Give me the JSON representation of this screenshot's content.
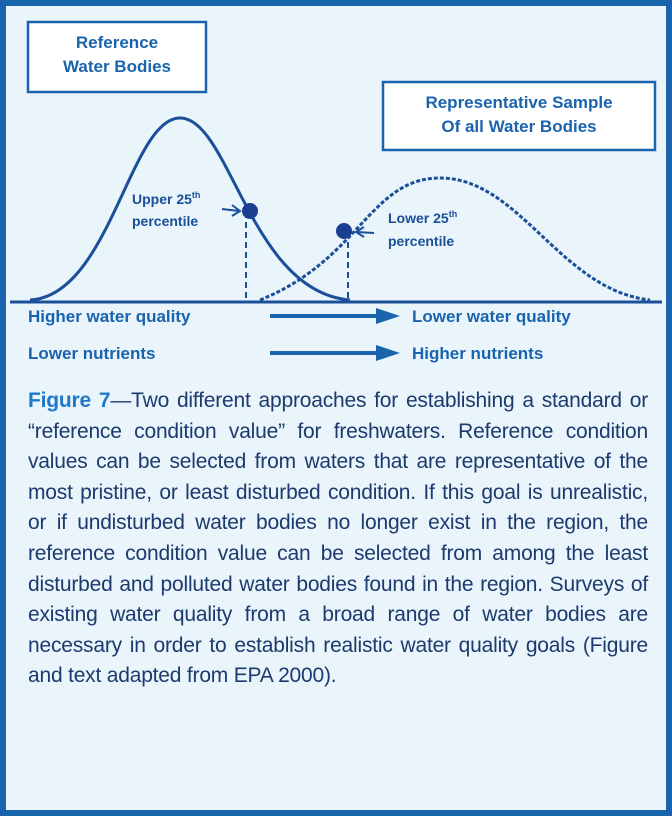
{
  "reference_box": {
    "lines": [
      "Reference",
      "Water Bodies"
    ]
  },
  "sample_box": {
    "lines": [
      "Representative Sample",
      "Of all Water Bodies"
    ]
  },
  "upper_label": {
    "text": "Upper 25",
    "superscript": "th",
    "line2": "percentile"
  },
  "lower_label": {
    "text": "Lower 25",
    "superscript": "th",
    "line2": "percentile"
  },
  "arrows": [
    {
      "from": "Higher water quality",
      "to": "Lower water quality"
    },
    {
      "from": "Lower nutrients",
      "to": "Higher nutrients"
    }
  ],
  "caption": {
    "label": "Figure 7",
    "text": "—Two different approaches for establishing a standard or “reference condition value” for freshwaters. Reference condition values can be selected from waters that are representative of the most pristine, or least disturbed condition.  If this goal is unrealistic, or if undisturbed water bodies no longer exist in the region, the reference condition value can be selected from among the least disturbed and polluted water bodies found in the region.  Surveys of existing water quality from a broad range of water bodies are necessary in order to establish realistic water quality goals (Figure and text adapted from EPA 2000)."
  }
}
